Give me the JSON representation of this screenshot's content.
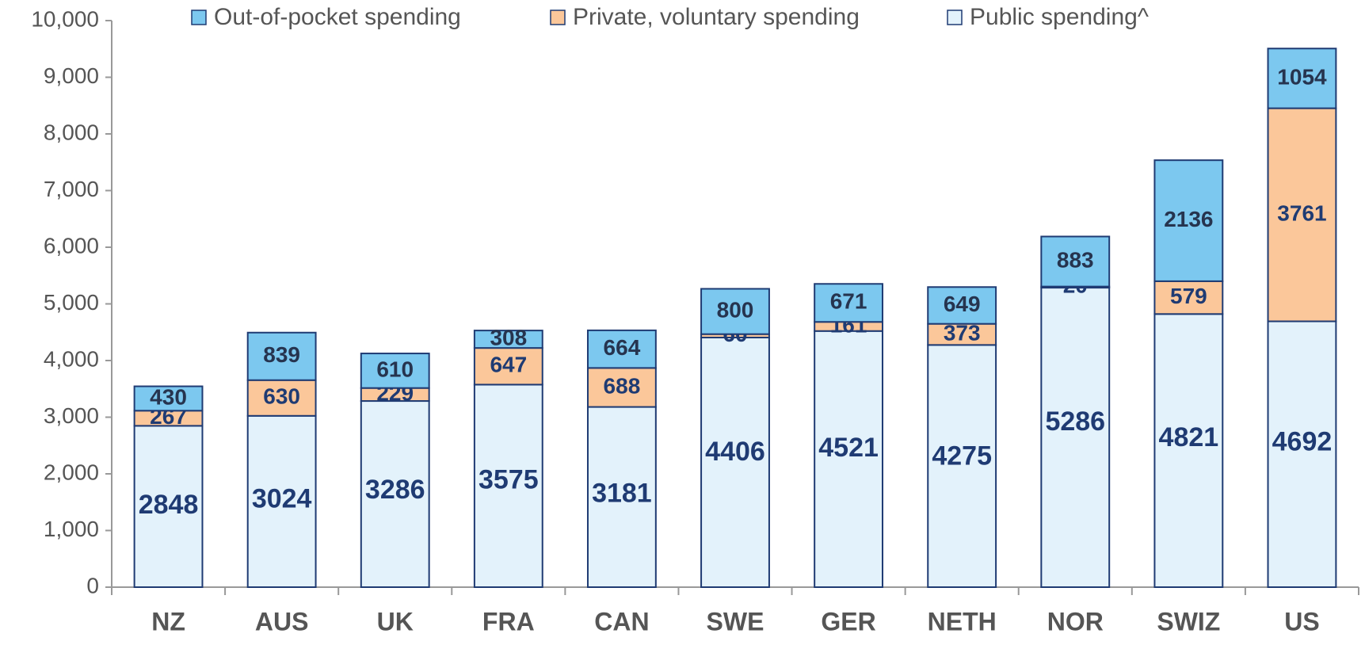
{
  "chart_data": {
    "type": "stacked_bar",
    "categories": [
      "NZ",
      "AUS",
      "UK",
      "FRA",
      "CAN",
      "SWE",
      "GER",
      "NETH",
      "NOR",
      "SWIZ",
      "US"
    ],
    "series": [
      {
        "name": "Out-of-pocket spending",
        "color": "#7cc8ef",
        "values": [
          430,
          839,
          610,
          308,
          664,
          800,
          671,
          649,
          883,
          2136,
          1054
        ]
      },
      {
        "name": "Private, voluntary spending",
        "color": "#fbc79a",
        "values": [
          267,
          630,
          229,
          647,
          688,
          60,
          161,
          373,
          20,
          579,
          3761
        ]
      },
      {
        "name": "Public spending^",
        "color": "#e3f2fb",
        "values": [
          2848,
          3024,
          3286,
          3575,
          3181,
          4406,
          4521,
          4275,
          5286,
          4821,
          4692
        ]
      }
    ],
    "ylim": [
      0,
      10000
    ],
    "yticks": [
      0,
      {
        "value": 1000,
        "label": "1,000"
      },
      {
        "value": 2000,
        "label": "2,000"
      },
      {
        "value": 3000,
        "label": "3,000"
      },
      {
        "value": 4000,
        "label": "4,000"
      },
      {
        "value": 5000,
        "label": "5,000"
      },
      {
        "value": 6000,
        "label": "6,000"
      },
      {
        "value": 7000,
        "label": "7,000"
      },
      {
        "value": 8000,
        "label": "8,000"
      },
      {
        "value": 9000,
        "label": "9,000"
      },
      {
        "value": 10000,
        "label": "10,000"
      }
    ],
    "legend": "top"
  }
}
